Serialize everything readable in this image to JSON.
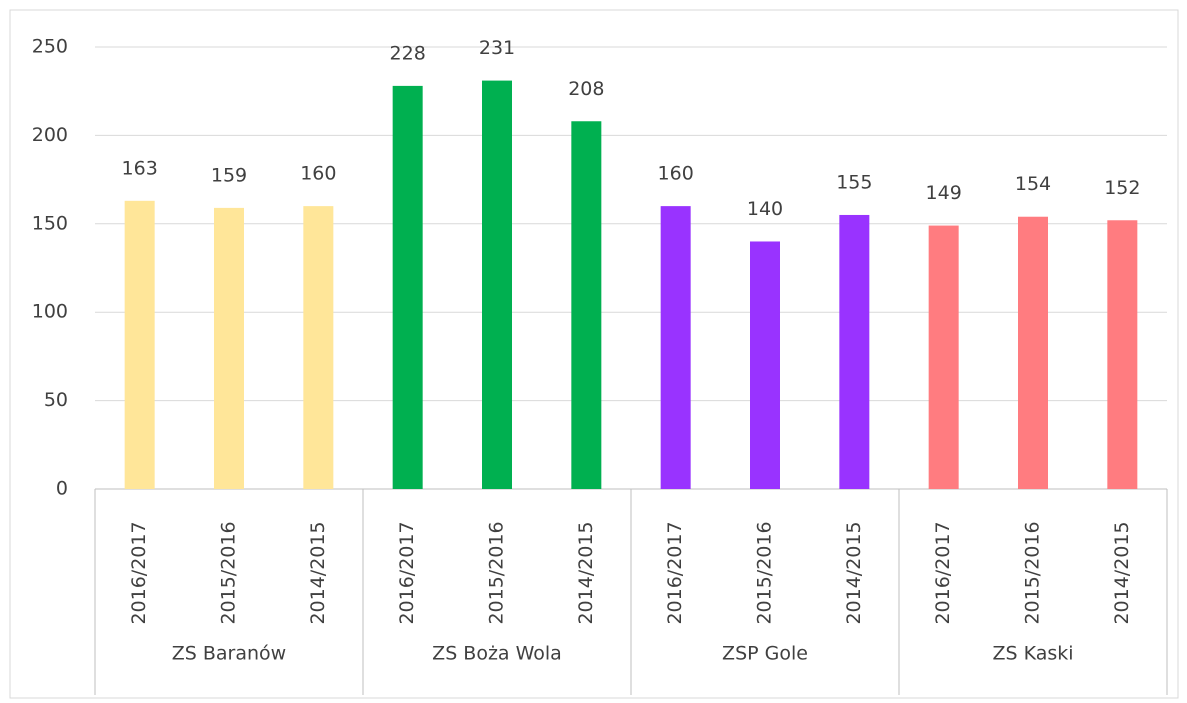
{
  "chart_data": {
    "type": "bar",
    "groups": [
      {
        "name": "ZS Baranów",
        "color": "#FFE699",
        "categories": [
          "2016/2017",
          "2015/2016",
          "2014/2015"
        ],
        "values": [
          163,
          159,
          160
        ]
      },
      {
        "name": "ZS Boża Wola",
        "color": "#00B050",
        "categories": [
          "2016/2017",
          "2015/2016",
          "2014/2015"
        ],
        "values": [
          228,
          231,
          208
        ]
      },
      {
        "name": "ZSP Gole",
        "color": "#9933FF",
        "categories": [
          "2016/2017",
          "2015/2016",
          "2014/2015"
        ],
        "values": [
          160,
          140,
          155
        ]
      },
      {
        "name": "ZS Kaski",
        "color": "#FF7C80",
        "categories": [
          "2016/2017",
          "2015/2016",
          "2014/2015"
        ],
        "values": [
          149,
          154,
          152
        ]
      }
    ],
    "ylim": [
      0,
      250
    ],
    "yticks": [
      0,
      50,
      100,
      150,
      200,
      250
    ],
    "grid": true
  }
}
